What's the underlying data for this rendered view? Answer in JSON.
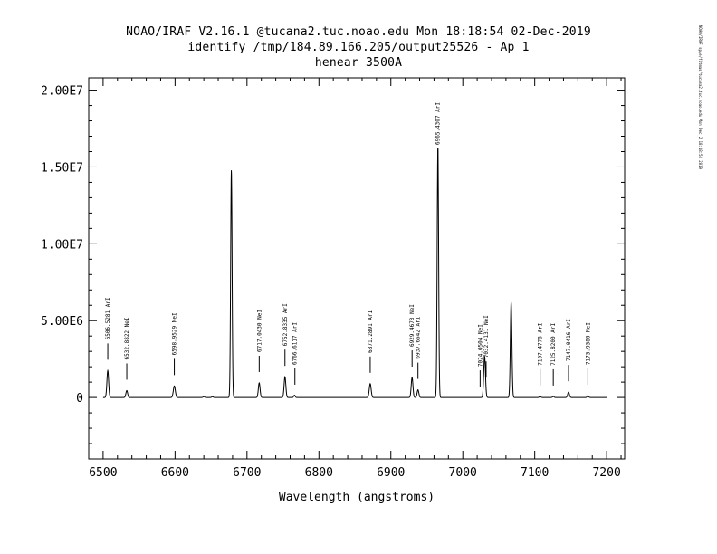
{
  "header": {
    "line1": "NOAO/IRAF V2.16.1 @tucana2.tuc.noao.edu Mon 18:18:54 02-Dec-2019",
    "line2": "identify /tmp/184.89.166.205/output25526 - Ap 1",
    "line3": "henear 3500A"
  },
  "side_label": "NOAO/IRAF sp/e/fitmas/tucana2.tuc.noao.edu Mon Dec 2 18:18:54 2019",
  "chart_data": {
    "type": "line",
    "title": "henear 3500A",
    "xlabel": "Wavelength (angstroms)",
    "ylabel": "",
    "xlim": [
      6480,
      7225
    ],
    "ylim": [
      -4000000,
      20800000
    ],
    "x_ticks": [
      6500,
      6600,
      6700,
      6800,
      6900,
      7000,
      7100,
      7200
    ],
    "x_tick_labels": [
      "6500",
      "6600",
      "6700",
      "6800",
      "6900",
      "7000",
      "7100",
      "7200"
    ],
    "y_ticks": [
      0,
      5000000,
      10000000,
      15000000,
      20000000
    ],
    "y_tick_labels": [
      "0",
      "5.00E6",
      "1.00E7",
      "1.50E7",
      "2.00E7"
    ],
    "baseline": 0,
    "peaks": [
      {
        "x": 6506.5,
        "y": 1750000,
        "w": 1.2
      },
      {
        "x": 6532.9,
        "y": 450000,
        "w": 1.2
      },
      {
        "x": 6599.0,
        "y": 750000,
        "w": 1.4
      },
      {
        "x": 6640.0,
        "y": 60000,
        "w": 1.0
      },
      {
        "x": 6652.0,
        "y": 50000,
        "w": 1.0
      },
      {
        "x": 6678.3,
        "y": 14800000,
        "w": 1.0
      },
      {
        "x": 6717.0,
        "y": 950000,
        "w": 1.2
      },
      {
        "x": 6752.8,
        "y": 1350000,
        "w": 1.2
      },
      {
        "x": 6766.0,
        "y": 150000,
        "w": 1.0
      },
      {
        "x": 6871.3,
        "y": 900000,
        "w": 1.3
      },
      {
        "x": 6929.5,
        "y": 1300000,
        "w": 1.2
      },
      {
        "x": 6937.7,
        "y": 500000,
        "w": 1.2
      },
      {
        "x": 6965.4,
        "y": 16300000,
        "w": 1.0
      },
      {
        "x": 7030.3,
        "y": 2700000,
        "w": 1.2
      },
      {
        "x": 7067.2,
        "y": 6200000,
        "w": 1.1
      },
      {
        "x": 7107.5,
        "y": 80000,
        "w": 1.0
      },
      {
        "x": 7125.8,
        "y": 70000,
        "w": 1.0
      },
      {
        "x": 7147.0,
        "y": 350000,
        "w": 1.2
      },
      {
        "x": 7173.9,
        "y": 120000,
        "w": 1.0
      }
    ],
    "line_ids": [
      {
        "x": 6506.5,
        "label": "6506.5281 ArI"
      },
      {
        "x": 6532.9,
        "label": "6532.8822 NeI"
      },
      {
        "x": 6599.0,
        "label": "6598.9529 NeI"
      },
      {
        "x": 6717.0,
        "label": "6717.0430 NeI"
      },
      {
        "x": 6752.8,
        "label": "6752.8335 ArI"
      },
      {
        "x": 6766.6,
        "label": "6766.6117 ArI"
      },
      {
        "x": 6871.3,
        "label": "6871.2891 ArI"
      },
      {
        "x": 6929.5,
        "label": "6929.4673 NeI"
      },
      {
        "x": 6937.7,
        "label": "6937.6642 ArI"
      },
      {
        "x": 6965.4,
        "label": "6965.4307 ArI"
      },
      {
        "x": 7024.1,
        "label": "7024.0504 NeI"
      },
      {
        "x": 7032.4,
        "label": "7032.4131 NeI"
      },
      {
        "x": 7107.5,
        "label": "7107.4778 ArI"
      },
      {
        "x": 7125.8,
        "label": "7125.8200 ArI"
      },
      {
        "x": 7147.0,
        "label": "7147.0416 ArI"
      },
      {
        "x": 7173.9,
        "label": "7173.9380 NeI"
      }
    ]
  }
}
